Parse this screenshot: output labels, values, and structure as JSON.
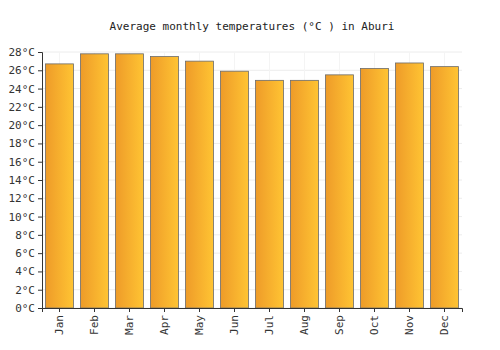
{
  "chart_data": {
    "type": "bar",
    "title": "Average monthly temperatures (°C ) in Aburi",
    "categories": [
      "Jan",
      "Feb",
      "Mar",
      "Apr",
      "May",
      "Jun",
      "Jul",
      "Aug",
      "Sep",
      "Oct",
      "Nov",
      "Dec"
    ],
    "values": [
      26.7,
      27.8,
      27.8,
      27.5,
      27.0,
      25.9,
      24.9,
      24.9,
      25.5,
      26.2,
      26.8,
      26.4
    ],
    "color": "#fba42b",
    "ylim": [
      0,
      28
    ],
    "yticks": [
      {
        "value": 0,
        "label": "0°C"
      },
      {
        "value": 2,
        "label": "2°C"
      },
      {
        "value": 4,
        "label": "4°C"
      },
      {
        "value": 6,
        "label": "6°C"
      },
      {
        "value": 8,
        "label": "8°C"
      },
      {
        "value": 10,
        "label": "10°C"
      },
      {
        "value": 12,
        "label": "12°C"
      },
      {
        "value": 14,
        "label": "14°C"
      },
      {
        "value": 16,
        "label": "16°C"
      },
      {
        "value": 18,
        "label": "18°C"
      },
      {
        "value": 20,
        "label": "20°C"
      },
      {
        "value": 22,
        "label": "22°C"
      },
      {
        "value": 24,
        "label": "24°C"
      },
      {
        "value": 26,
        "label": "26°C"
      },
      {
        "value": 28,
        "label": "28°C"
      }
    ],
    "grid": true
  }
}
